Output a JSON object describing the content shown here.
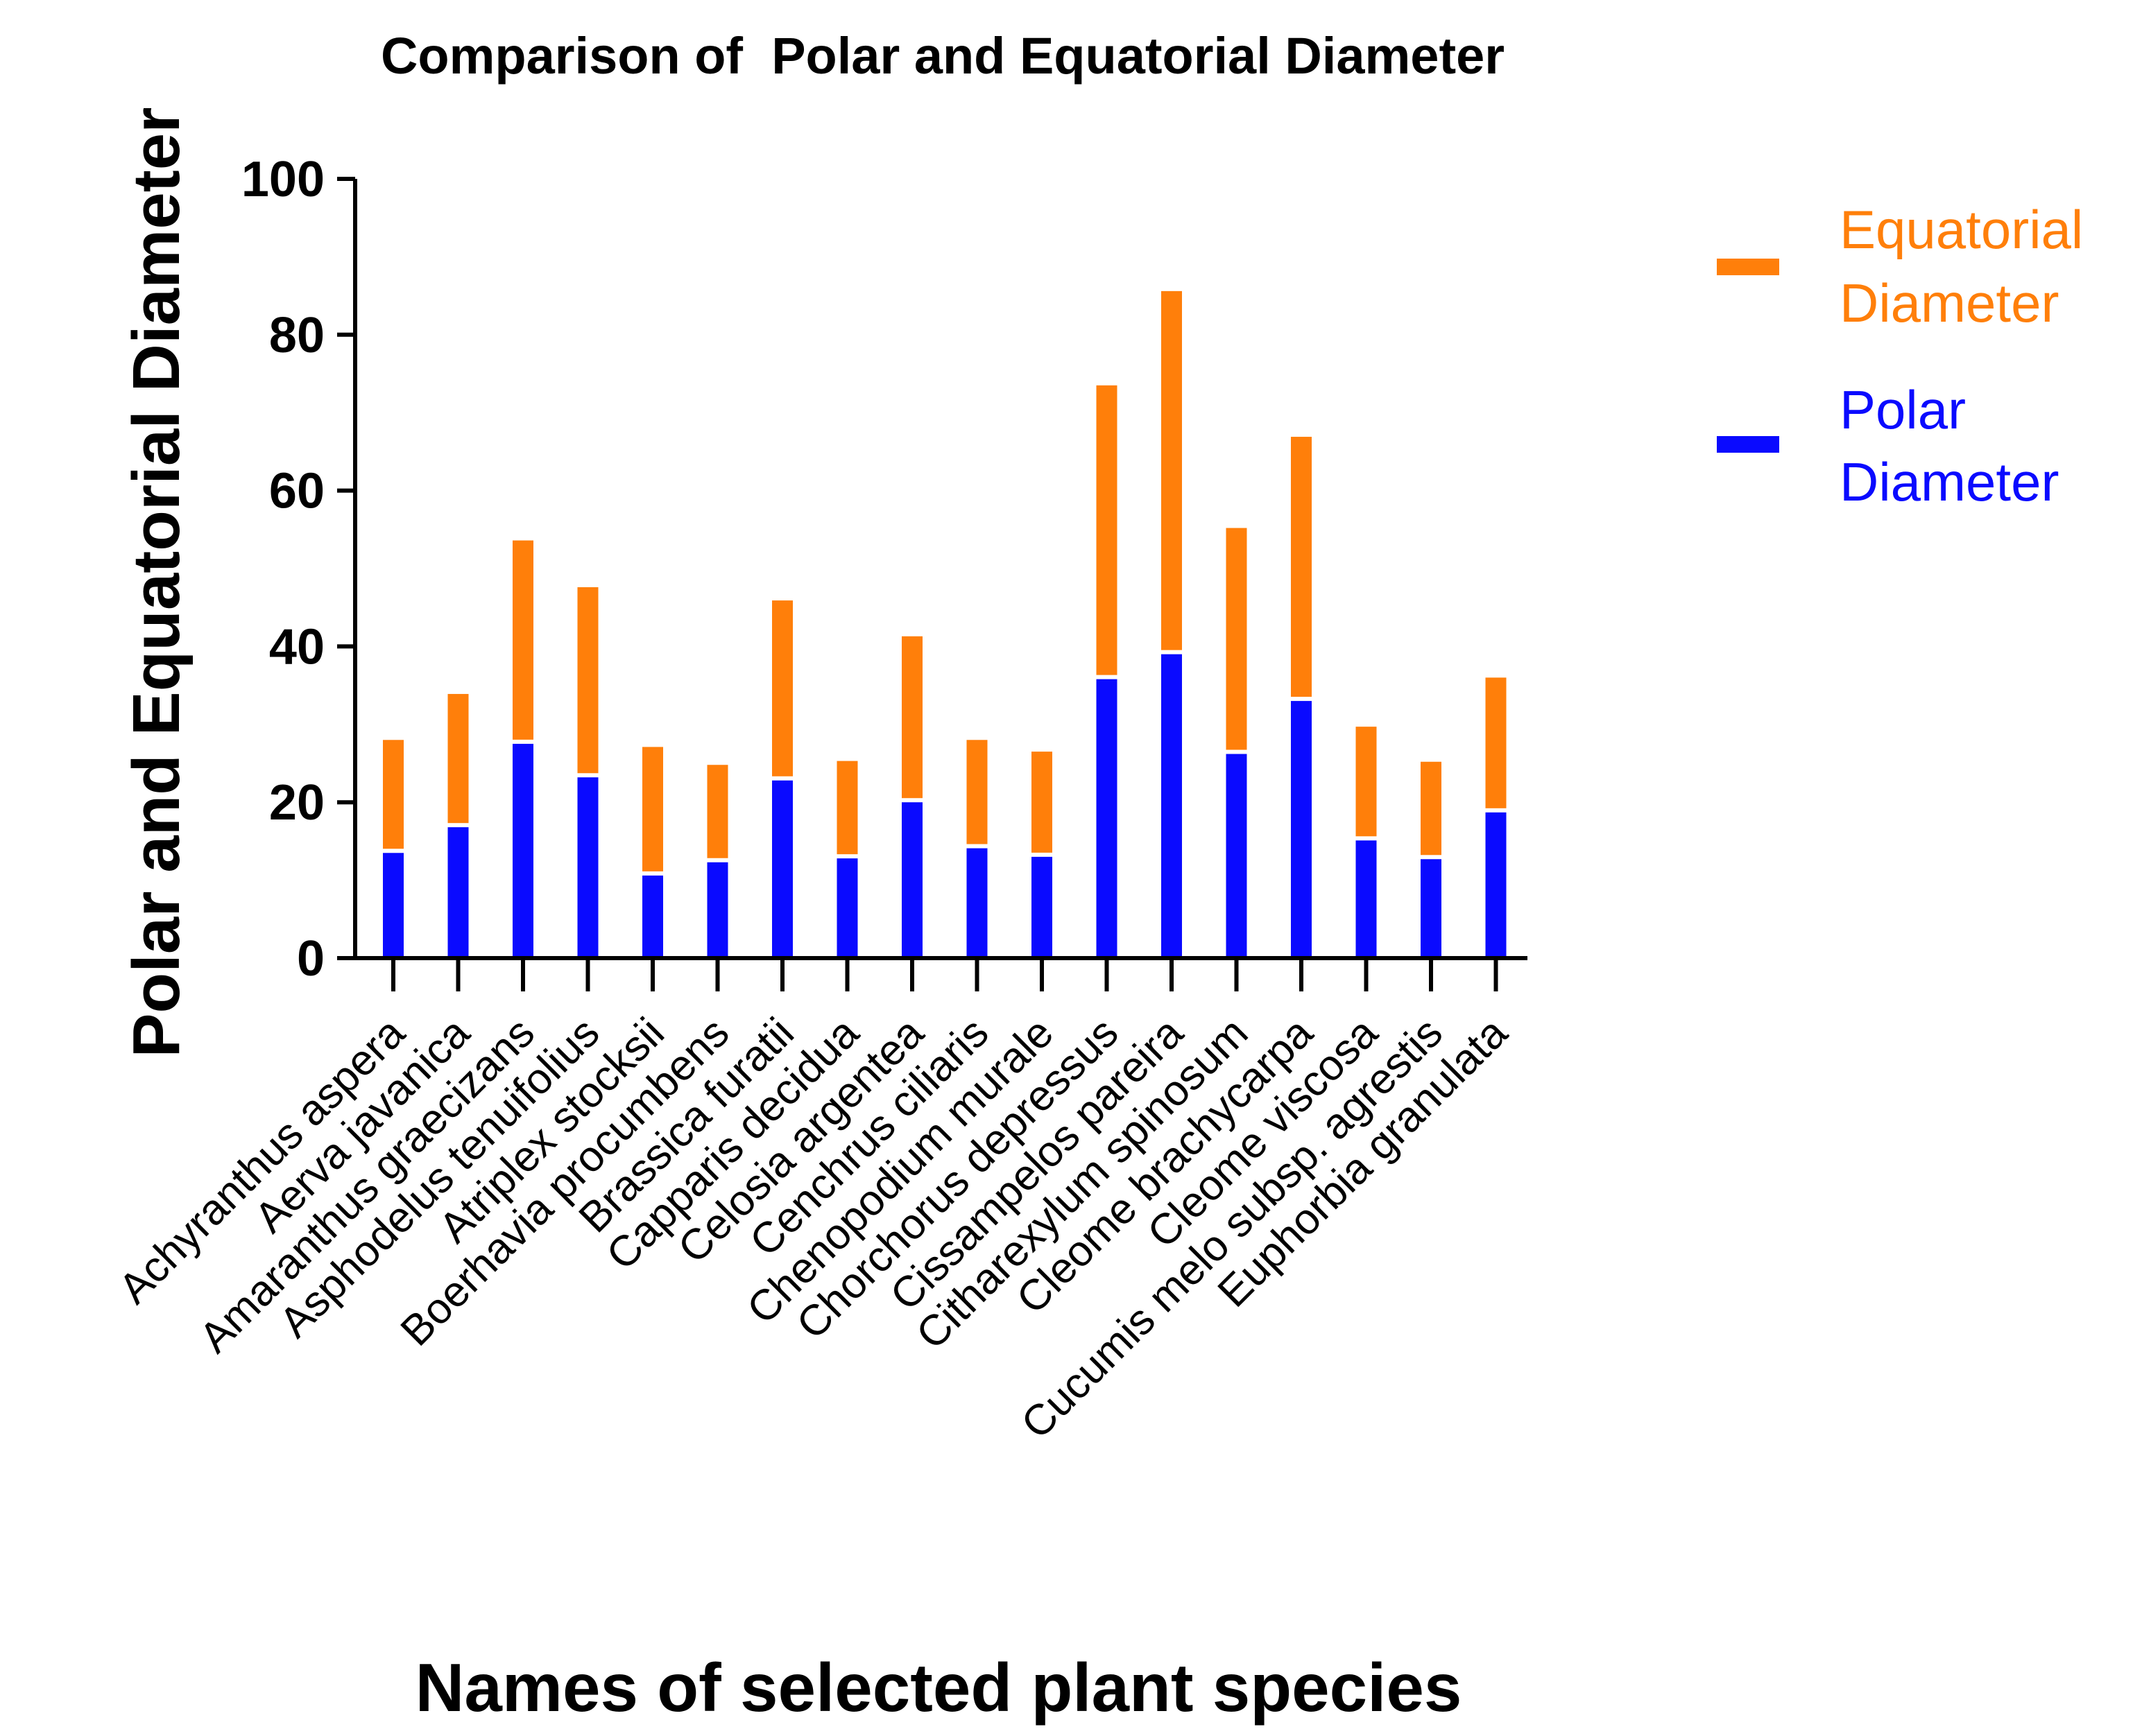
{
  "chart_data": {
    "type": "bar",
    "stacked": true,
    "title": "Comparison of  Polar and Equatorial Diameter",
    "xlabel": "Names of selected plant species",
    "ylabel": "Polar and Equatorial Diameter",
    "ylim": [
      0,
      100
    ],
    "yticks": [
      0,
      20,
      40,
      60,
      80,
      100
    ],
    "grid": false,
    "legend_position": "right",
    "categories": [
      "Achyranthus aspera",
      "Aerva javanica",
      "Amaranthus graecizans",
      "Asphodelus tenuifolius",
      "Atriplex stocksii",
      "Boerhavia procumbens",
      "Brassica furatii",
      "Capparis decidua",
      "Celosia argentea",
      "Cenchrus ciliaris",
      "Chenopodium murale",
      "Chorchorus depressus",
      "Cissampelos pareira",
      "Citharexylum spinosum",
      "Cleome brachycarpa",
      "Cleome viscosa",
      "Cucumis melo subsp. agrestis",
      "Euphorbia granulata"
    ],
    "series": [
      {
        "name": "Polar\nDiameter",
        "color": "#0a0aff",
        "values": [
          13.5,
          16.8,
          27.5,
          23.2,
          10.6,
          12.3,
          22.8,
          12.8,
          20.0,
          14.1,
          13.0,
          35.8,
          39.0,
          26.2,
          33.0,
          15.1,
          12.7,
          18.7
        ]
      },
      {
        "name": "Equatorial\nDiameter",
        "color": "#ff7f0a",
        "values": [
          14.5,
          17.1,
          26.1,
          24.4,
          16.5,
          12.5,
          23.1,
          12.5,
          21.3,
          13.9,
          13.5,
          37.7,
          46.6,
          29.0,
          33.9,
          14.6,
          12.5,
          17.3
        ]
      }
    ]
  }
}
